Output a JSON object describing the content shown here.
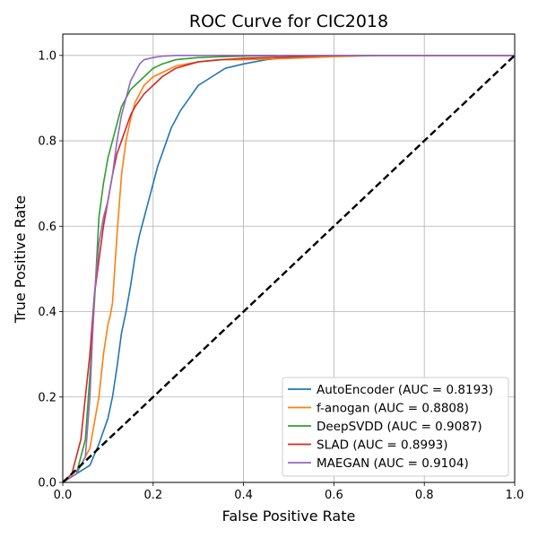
{
  "chart_data": {
    "type": "line",
    "title": "ROC Curve for CIC2018",
    "xlabel": "False Positive Rate",
    "ylabel": "True Positive Rate",
    "xlim": [
      0.0,
      1.0
    ],
    "ylim": [
      0.0,
      1.05
    ],
    "x_ticks": [
      "0.0",
      "0.2",
      "0.4",
      "0.6",
      "0.8",
      "1.0"
    ],
    "y_ticks": [
      "0.0",
      "0.2",
      "0.4",
      "0.6",
      "0.8",
      "1.0"
    ],
    "grid": true,
    "legend_position": "bottom-right",
    "series": [
      {
        "name": "AutoEncoder (AUC = 0.8193)",
        "color": "#1f77b4",
        "x": [
          0,
          0.03,
          0.06,
          0.08,
          0.1,
          0.11,
          0.12,
          0.13,
          0.14,
          0.15,
          0.16,
          0.17,
          0.18,
          0.19,
          0.2,
          0.21,
          0.22,
          0.23,
          0.24,
          0.25,
          0.26,
          0.28,
          0.3,
          0.33,
          0.36,
          0.4,
          0.45,
          0.5,
          0.6,
          0.7,
          1.0
        ],
        "y": [
          0,
          0.02,
          0.04,
          0.09,
          0.15,
          0.2,
          0.27,
          0.35,
          0.4,
          0.46,
          0.53,
          0.58,
          0.62,
          0.66,
          0.7,
          0.74,
          0.77,
          0.8,
          0.83,
          0.85,
          0.87,
          0.9,
          0.93,
          0.95,
          0.97,
          0.98,
          0.99,
          0.995,
          0.998,
          1.0,
          1.0
        ]
      },
      {
        "name": "f-anogan (AUC = 0.8808)",
        "color": "#ff7f0e",
        "x": [
          0,
          0.03,
          0.06,
          0.08,
          0.09,
          0.1,
          0.105,
          0.11,
          0.115,
          0.12,
          0.125,
          0.13,
          0.14,
          0.15,
          0.16,
          0.18,
          0.2,
          0.22,
          0.25,
          0.3,
          0.35,
          0.4,
          0.5,
          0.6,
          0.7,
          1.0
        ],
        "y": [
          0,
          0.02,
          0.08,
          0.2,
          0.3,
          0.37,
          0.39,
          0.42,
          0.5,
          0.58,
          0.65,
          0.72,
          0.8,
          0.85,
          0.89,
          0.93,
          0.95,
          0.96,
          0.975,
          0.985,
          0.99,
          0.99,
          0.993,
          0.997,
          1.0,
          1.0
        ]
      },
      {
        "name": "DeepSVDD (AUC = 0.9087)",
        "color": "#2ca02c",
        "x": [
          0,
          0.03,
          0.05,
          0.06,
          0.07,
          0.08,
          0.09,
          0.1,
          0.11,
          0.12,
          0.13,
          0.14,
          0.15,
          0.16,
          0.18,
          0.2,
          0.22,
          0.25,
          0.3,
          0.35,
          0.4,
          0.5,
          0.6,
          1.0
        ],
        "y": [
          0,
          0.02,
          0.1,
          0.25,
          0.42,
          0.62,
          0.7,
          0.76,
          0.8,
          0.84,
          0.88,
          0.9,
          0.92,
          0.93,
          0.95,
          0.97,
          0.98,
          0.99,
          0.995,
          0.997,
          0.998,
          1.0,
          1.0,
          1.0
        ]
      },
      {
        "name": "SLAD (AUC = 0.8993)",
        "color": "#d62728",
        "x": [
          0,
          0.02,
          0.04,
          0.05,
          0.06,
          0.07,
          0.08,
          0.09,
          0.1,
          0.11,
          0.12,
          0.13,
          0.14,
          0.15,
          0.16,
          0.18,
          0.2,
          0.22,
          0.25,
          0.3,
          0.35,
          0.4,
          0.5,
          0.6,
          1.0
        ],
        "y": [
          0,
          0.02,
          0.1,
          0.2,
          0.3,
          0.44,
          0.52,
          0.6,
          0.66,
          0.72,
          0.77,
          0.8,
          0.83,
          0.86,
          0.88,
          0.91,
          0.93,
          0.95,
          0.97,
          0.985,
          0.99,
          0.993,
          0.997,
          1.0,
          1.0
        ]
      },
      {
        "name": "MAEGAN (AUC = 0.9104)",
        "color": "#9467bd",
        "x": [
          0,
          0.03,
          0.05,
          0.06,
          0.07,
          0.08,
          0.09,
          0.1,
          0.11,
          0.12,
          0.13,
          0.14,
          0.15,
          0.16,
          0.17,
          0.18,
          0.2,
          0.22,
          0.25,
          0.3,
          0.35,
          0.4,
          1.0
        ],
        "y": [
          0,
          0.02,
          0.06,
          0.2,
          0.44,
          0.56,
          0.62,
          0.66,
          0.72,
          0.8,
          0.86,
          0.9,
          0.94,
          0.96,
          0.98,
          0.99,
          0.995,
          0.998,
          1.0,
          1.0,
          1.0,
          1.0,
          1.0
        ]
      },
      {
        "name": "",
        "color": "#000000",
        "dashed": true,
        "x": [
          0,
          1
        ],
        "y": [
          0,
          1
        ]
      }
    ]
  }
}
